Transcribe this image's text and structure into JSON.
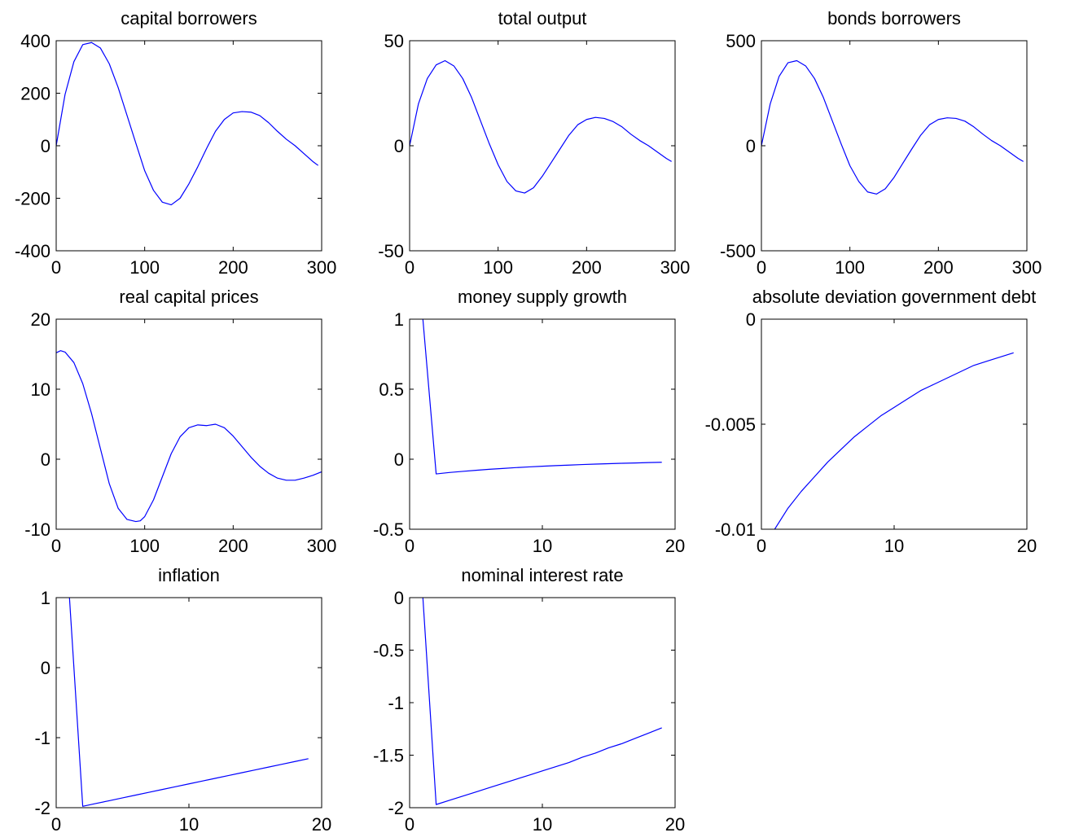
{
  "colors": {
    "series": "#0000ff",
    "axes": "#000000",
    "background": "#ffffff"
  },
  "chart_data": [
    {
      "type": "line",
      "title": "capital borrowers",
      "xlim": [
        0,
        300
      ],
      "ylim": [
        -400,
        400
      ],
      "xticks": [
        0,
        100,
        200,
        300
      ],
      "xtick_labels": [
        "0",
        "100",
        "200",
        "300"
      ],
      "yticks": [
        -400,
        -200,
        0,
        200,
        400
      ],
      "ytick_labels": [
        "-400",
        "-200",
        "0",
        "200",
        "400"
      ],
      "series": [
        {
          "x": [
            0,
            10,
            20,
            30,
            40,
            50,
            60,
            70,
            80,
            90,
            100,
            110,
            120,
            130,
            140,
            150,
            160,
            170,
            180,
            190,
            200,
            210,
            220,
            230,
            240,
            250,
            260,
            270,
            280,
            290,
            296
          ],
          "y": [
            0,
            195,
            320,
            385,
            393,
            372,
            312,
            222,
            116,
            10,
            -95,
            -170,
            -215,
            -225,
            -200,
            -145,
            -80,
            -10,
            55,
            100,
            125,
            130,
            128,
            115,
            88,
            55,
            25,
            0,
            -30,
            -60,
            -75
          ]
        }
      ]
    },
    {
      "type": "line",
      "title": "total output",
      "xlim": [
        0,
        300
      ],
      "ylim": [
        -50,
        50
      ],
      "xticks": [
        0,
        100,
        200,
        300
      ],
      "xtick_labels": [
        "0",
        "100",
        "200",
        "300"
      ],
      "yticks": [
        -50,
        0,
        50
      ],
      "ytick_labels": [
        "-50",
        "0",
        "50"
      ],
      "series": [
        {
          "x": [
            0,
            10,
            20,
            30,
            40,
            50,
            60,
            70,
            80,
            90,
            100,
            110,
            120,
            130,
            140,
            150,
            160,
            170,
            180,
            190,
            200,
            210,
            220,
            230,
            240,
            250,
            260,
            270,
            280,
            290,
            296
          ],
          "y": [
            0,
            20,
            32,
            38.5,
            40.5,
            38,
            32,
            23,
            12,
            1,
            -9,
            -17,
            -21.5,
            -22.5,
            -20,
            -14.5,
            -8,
            -1.5,
            5,
            10,
            12.5,
            13.5,
            13,
            11.5,
            9,
            5.5,
            2.5,
            0,
            -3,
            -6,
            -7.5
          ]
        }
      ]
    },
    {
      "type": "line",
      "title": "bonds borrowers",
      "xlim": [
        0,
        300
      ],
      "ylim": [
        -500,
        500
      ],
      "xticks": [
        0,
        100,
        200,
        300
      ],
      "xtick_labels": [
        "0",
        "100",
        "200",
        "300"
      ],
      "yticks": [
        -500,
        0,
        500
      ],
      "ytick_labels": [
        "-500",
        "0",
        "500"
      ],
      "series": [
        {
          "x": [
            0,
            10,
            20,
            30,
            40,
            50,
            60,
            70,
            80,
            90,
            100,
            110,
            120,
            130,
            140,
            150,
            160,
            170,
            180,
            190,
            200,
            210,
            220,
            230,
            240,
            250,
            260,
            270,
            280,
            290,
            296
          ],
          "y": [
            0,
            200,
            330,
            395,
            405,
            380,
            320,
            230,
            120,
            10,
            -95,
            -170,
            -220,
            -230,
            -205,
            -150,
            -82,
            -15,
            50,
            100,
            125,
            133,
            130,
            117,
            90,
            56,
            25,
            0,
            -30,
            -60,
            -75
          ]
        }
      ]
    },
    {
      "type": "line",
      "title": "real capital prices",
      "xlim": [
        0,
        300
      ],
      "ylim": [
        -10,
        20
      ],
      "xticks": [
        0,
        100,
        200,
        300
      ],
      "xtick_labels": [
        "0",
        "100",
        "200",
        "300"
      ],
      "yticks": [
        -10,
        0,
        10,
        20
      ],
      "ytick_labels": [
        "-10",
        "0",
        "10",
        "20"
      ],
      "series": [
        {
          "x": [
            0,
            5,
            10,
            20,
            30,
            40,
            50,
            60,
            70,
            80,
            90,
            95,
            100,
            110,
            120,
            130,
            140,
            150,
            160,
            170,
            180,
            190,
            200,
            210,
            220,
            230,
            240,
            250,
            260,
            270,
            280,
            290,
            300
          ],
          "y": [
            15.2,
            15.5,
            15.3,
            13.8,
            10.8,
            6.5,
            1.5,
            -3.5,
            -7,
            -8.6,
            -8.9,
            -8.8,
            -8.2,
            -5.8,
            -2.5,
            0.8,
            3.2,
            4.5,
            4.9,
            4.8,
            5.0,
            4.5,
            3.3,
            1.8,
            0.3,
            -1.0,
            -2.0,
            -2.7,
            -3.0,
            -3.0,
            -2.7,
            -2.3,
            -1.8
          ]
        }
      ]
    },
    {
      "type": "line",
      "title": "money supply growth",
      "xlim": [
        0,
        20
      ],
      "ylim": [
        -0.5,
        1
      ],
      "xticks": [
        0,
        10,
        20
      ],
      "xtick_labels": [
        "0",
        "10",
        "20"
      ],
      "yticks": [
        -0.5,
        0,
        0.5,
        1
      ],
      "ytick_labels": [
        "-0.5",
        "0",
        "0.5",
        "1"
      ],
      "series": [
        {
          "x": [
            1,
            2,
            3,
            4,
            5,
            6,
            7,
            8,
            9,
            10,
            11,
            12,
            13,
            14,
            15,
            16,
            17,
            18,
            19
          ],
          "y": [
            1.0,
            -0.105,
            -0.095,
            -0.087,
            -0.079,
            -0.072,
            -0.066,
            -0.06,
            -0.055,
            -0.05,
            -0.046,
            -0.042,
            -0.038,
            -0.035,
            -0.032,
            -0.029,
            -0.027,
            -0.024,
            -0.022
          ]
        }
      ]
    },
    {
      "type": "line",
      "title": "absolute deviation government debt",
      "xlim": [
        0,
        20
      ],
      "ylim": [
        -0.01,
        0
      ],
      "xticks": [
        0,
        10,
        20
      ],
      "xtick_labels": [
        "0",
        "10",
        "20"
      ],
      "yticks": [
        -0.01,
        -0.005,
        0
      ],
      "ytick_labels": [
        "-0.01",
        "-0.005",
        "0"
      ],
      "series": [
        {
          "x": [
            1,
            2,
            3,
            4,
            5,
            6,
            7,
            8,
            9,
            10,
            11,
            12,
            13,
            14,
            15,
            16,
            17,
            18,
            19
          ],
          "y": [
            -0.01,
            -0.009,
            -0.0082,
            -0.0075,
            -0.0068,
            -0.0062,
            -0.0056,
            -0.0051,
            -0.0046,
            -0.0042,
            -0.0038,
            -0.0034,
            -0.0031,
            -0.0028,
            -0.0025,
            -0.0022,
            -0.002,
            -0.0018,
            -0.0016
          ]
        }
      ]
    },
    {
      "type": "line",
      "title": "inflation",
      "xlim": [
        0,
        20
      ],
      "ylim": [
        -2,
        1
      ],
      "xticks": [
        0,
        10,
        20
      ],
      "xtick_labels": [
        "0",
        "10",
        "20"
      ],
      "yticks": [
        -2,
        -1,
        0,
        1
      ],
      "ytick_labels": [
        "-2",
        "-1",
        "0",
        "1"
      ],
      "series": [
        {
          "x": [
            1,
            2,
            3,
            4,
            5,
            6,
            7,
            8,
            9,
            10,
            11,
            12,
            13,
            14,
            15,
            16,
            17,
            18,
            19
          ],
          "y": [
            1.0,
            -1.98,
            -1.94,
            -1.9,
            -1.86,
            -1.82,
            -1.78,
            -1.74,
            -1.7,
            -1.66,
            -1.62,
            -1.58,
            -1.54,
            -1.5,
            -1.46,
            -1.42,
            -1.38,
            -1.34,
            -1.3
          ]
        }
      ]
    },
    {
      "type": "line",
      "title": "nominal interest rate",
      "xlim": [
        0,
        20
      ],
      "ylim": [
        -2,
        0
      ],
      "xticks": [
        0,
        10,
        20
      ],
      "xtick_labels": [
        "0",
        "10",
        "20"
      ],
      "yticks": [
        -2,
        -1.5,
        -1,
        -0.5,
        0
      ],
      "ytick_labels": [
        "-2",
        "-1.5",
        "-1",
        "-0.5",
        "0"
      ],
      "series": [
        {
          "x": [
            1,
            2,
            3,
            4,
            5,
            6,
            7,
            8,
            9,
            10,
            11,
            12,
            13,
            14,
            15,
            16,
            17,
            18,
            19
          ],
          "y": [
            0.0,
            -1.97,
            -1.93,
            -1.89,
            -1.85,
            -1.81,
            -1.77,
            -1.73,
            -1.69,
            -1.65,
            -1.61,
            -1.57,
            -1.52,
            -1.48,
            -1.43,
            -1.39,
            -1.34,
            -1.29,
            -1.24
          ]
        }
      ]
    }
  ]
}
